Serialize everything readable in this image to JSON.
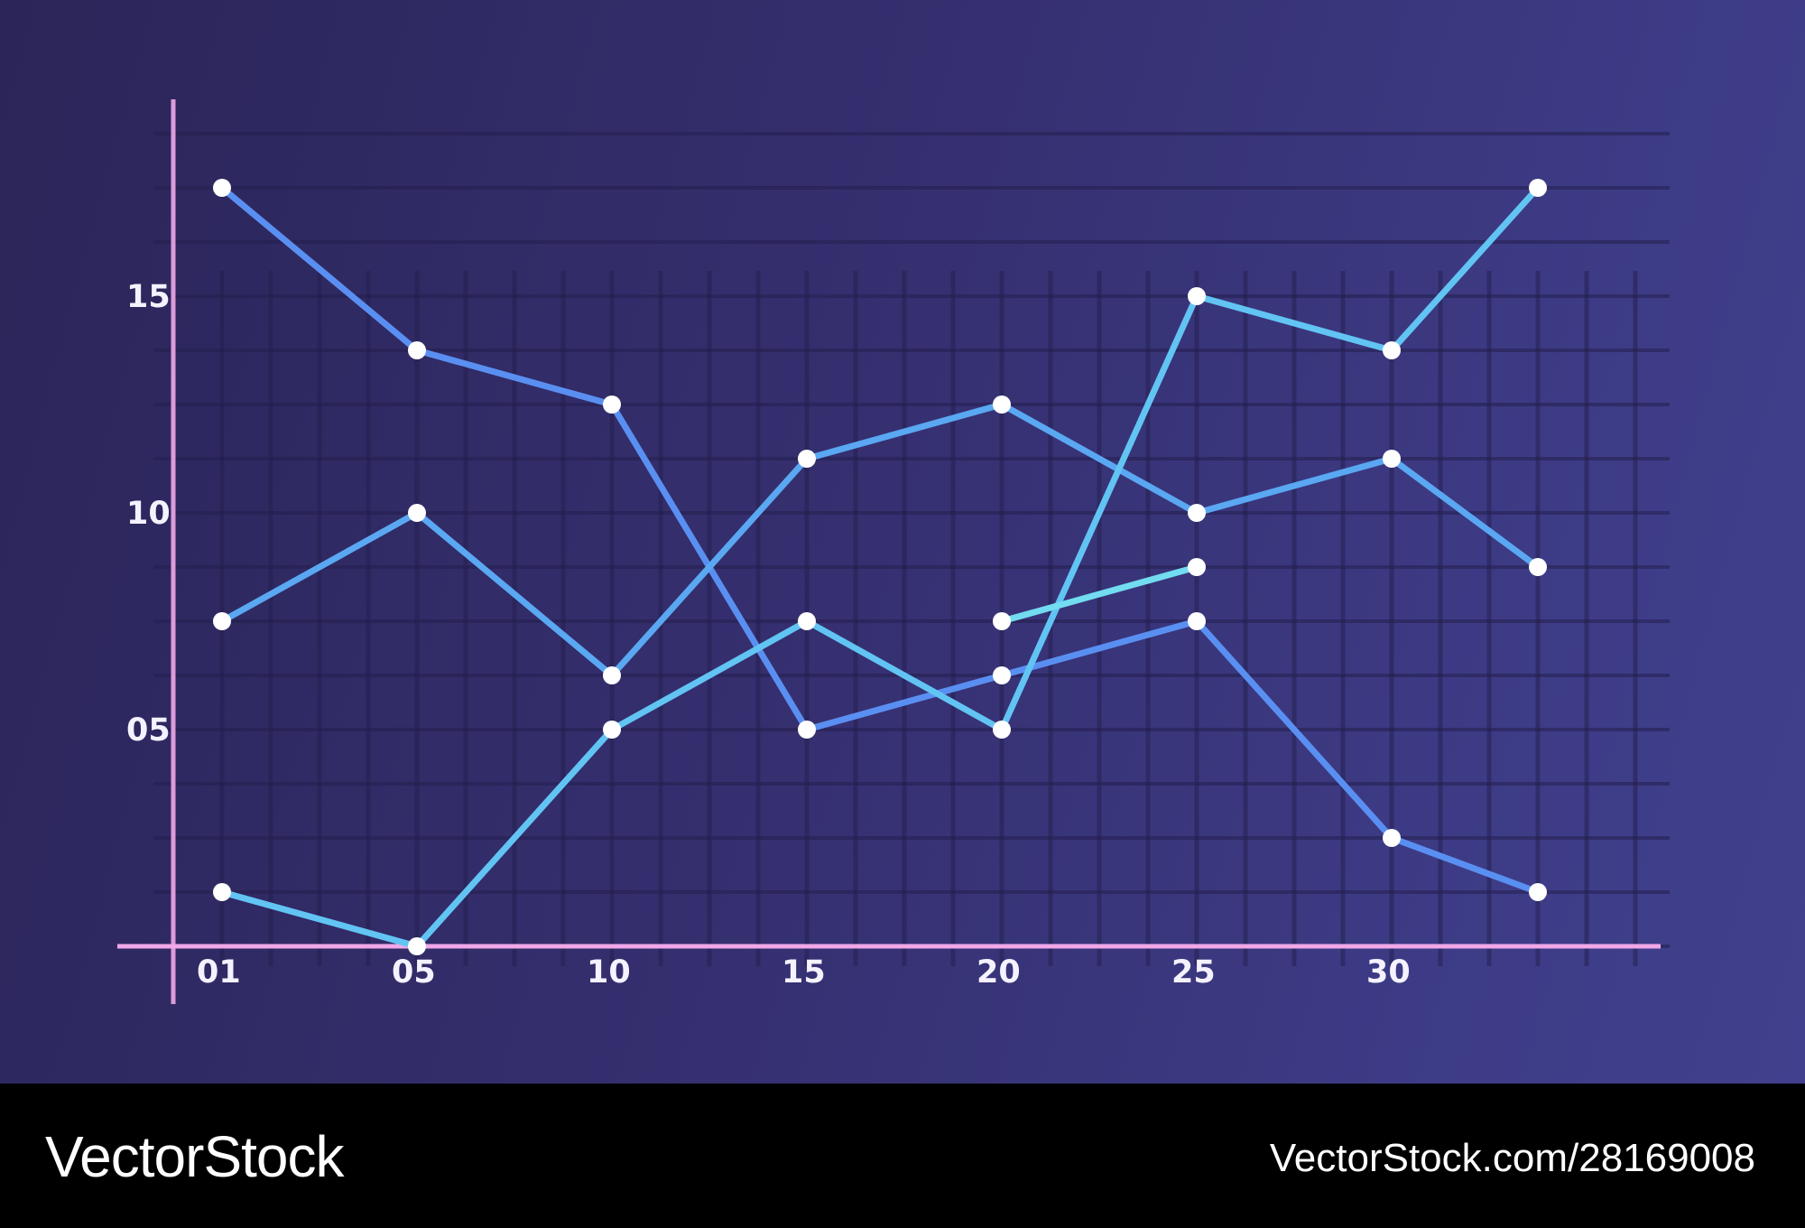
{
  "colors": {
    "series": [
      "#5a8ff2",
      "#5aa7f2",
      "#62c4f3",
      "#72dcf0"
    ],
    "axis": "#f0a8e8",
    "point": "#ffffff"
  },
  "chart_data": {
    "type": "line",
    "title": "",
    "xlabel": "",
    "ylabel": "",
    "x_tick_labels": [
      "01",
      "05",
      "10",
      "15",
      "20",
      "25",
      "30"
    ],
    "y_tick_labels": [
      {
        "label": "05",
        "value": 4
      },
      {
        "label": "10",
        "value": 8
      },
      {
        "label": "15",
        "value": 12
      }
    ],
    "x": [
      1,
      5,
      9,
      13,
      17,
      21,
      25,
      28
    ],
    "xlim": [
      0,
      30
    ],
    "ylim": [
      0,
      15
    ],
    "grid": true,
    "legend": "none",
    "series": [
      {
        "values": [
          14,
          11,
          10,
          4,
          5,
          6,
          2,
          1
        ]
      },
      {
        "values": [
          6,
          8,
          5,
          9,
          10,
          8,
          9,
          7
        ]
      },
      {
        "values": [
          1,
          0,
          4,
          6,
          4,
          12,
          11,
          14
        ]
      },
      {
        "values": [
          null,
          null,
          null,
          null,
          6,
          7,
          null,
          null
        ]
      }
    ]
  },
  "footer": {
    "brand": "VectorStock",
    "url": "VectorStock.com/28169008"
  }
}
